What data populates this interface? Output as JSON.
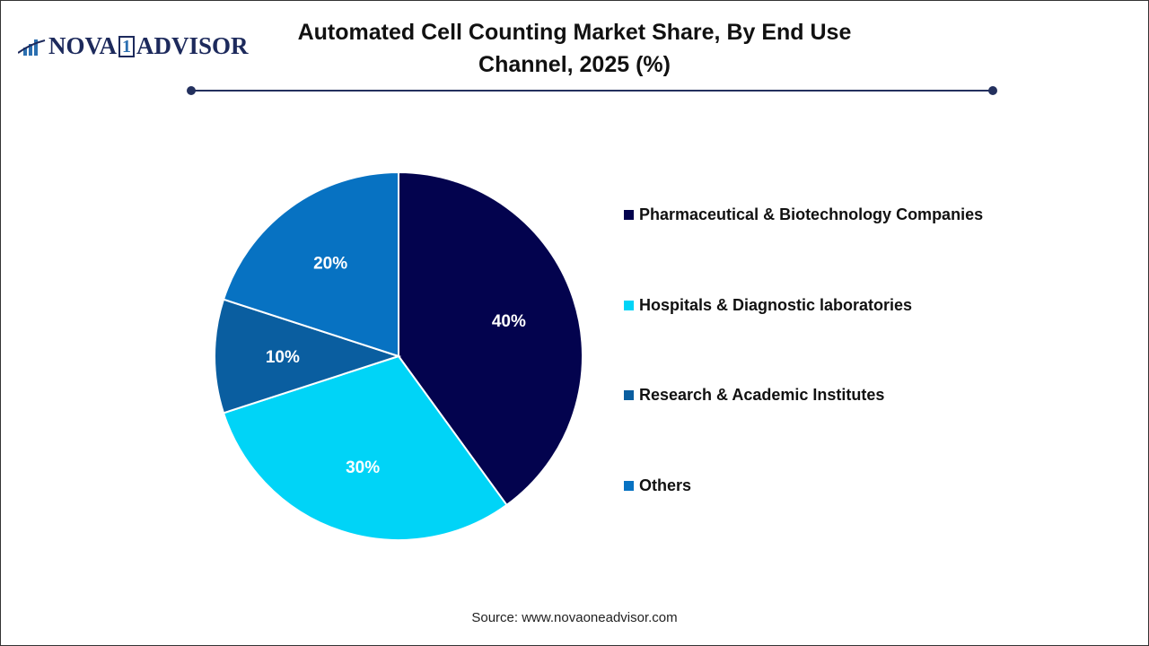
{
  "logo": {
    "text_left": "NOVA",
    "text_mid": "1",
    "text_right": "ADVISOR"
  },
  "chart_data": {
    "type": "pie",
    "title": "Automated Cell Counting Market Share, By End Use Channel, 2025 (%)",
    "categories": [
      "Pharmaceutical & Biotechnology Companies",
      "Hospitals & Diagnostic laboratories",
      "Research & Academic Institutes",
      "Others"
    ],
    "values": [
      40,
      30,
      10,
      20
    ],
    "labels": [
      "40%",
      "30%",
      "10%",
      "20%"
    ],
    "colors": [
      "#03034e",
      "#00d4f7",
      "#0a5ea0",
      "#0772c2"
    ],
    "legend_position": "right"
  },
  "source": "Source: www.novaoneadvisor.com"
}
